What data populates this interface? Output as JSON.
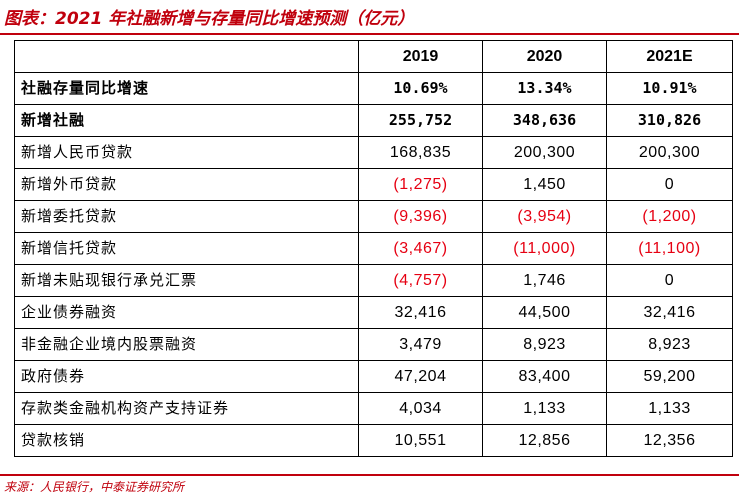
{
  "title": "图表：2021 年社融新增与存量同比增速预测（亿元）",
  "columns": [
    "",
    "2019",
    "2020",
    "2021E"
  ],
  "rows": [
    {
      "label": "社融存量同比增速",
      "values": [
        "10.69%",
        "13.34%",
        "10.91%"
      ],
      "negative": [
        false,
        false,
        false
      ],
      "bold": true
    },
    {
      "label": "新增社融",
      "values": [
        "255,752",
        "348,636",
        "310,826"
      ],
      "negative": [
        false,
        false,
        false
      ],
      "bold": true
    },
    {
      "label": "新增人民币贷款",
      "values": [
        "168,835",
        "200,300",
        "200,300"
      ],
      "negative": [
        false,
        false,
        false
      ],
      "bold": false
    },
    {
      "label": "新增外币贷款",
      "values": [
        "(1,275)",
        "1,450",
        "0"
      ],
      "negative": [
        true,
        false,
        false
      ],
      "bold": false
    },
    {
      "label": "新增委托贷款",
      "values": [
        "(9,396)",
        "(3,954)",
        "(1,200)"
      ],
      "negative": [
        true,
        true,
        true
      ],
      "bold": false
    },
    {
      "label": "新增信托贷款",
      "values": [
        "(3,467)",
        "(11,000)",
        "(11,100)"
      ],
      "negative": [
        true,
        true,
        true
      ],
      "bold": false
    },
    {
      "label": "新增未贴现银行承兑汇票",
      "values": [
        "(4,757)",
        "1,746",
        "0"
      ],
      "negative": [
        true,
        false,
        false
      ],
      "bold": false
    },
    {
      "label": "企业债券融资",
      "values": [
        "32,416",
        "44,500",
        "32,416"
      ],
      "negative": [
        false,
        false,
        false
      ],
      "bold": false
    },
    {
      "label": "非金融企业境内股票融资",
      "values": [
        "3,479",
        "8,923",
        "8,923"
      ],
      "negative": [
        false,
        false,
        false
      ],
      "bold": false
    },
    {
      "label": "政府债券",
      "values": [
        "47,204",
        "83,400",
        "59,200"
      ],
      "negative": [
        false,
        false,
        false
      ],
      "bold": false
    },
    {
      "label": "存款类金融机构资产支持证券",
      "values": [
        "4,034",
        "1,133",
        "1,133"
      ],
      "negative": [
        false,
        false,
        false
      ],
      "bold": false
    },
    {
      "label": "贷款核销",
      "values": [
        "10,551",
        "12,856",
        "12,356"
      ],
      "negative": [
        false,
        false,
        false
      ],
      "bold": false
    }
  ],
  "source": "来源：人民银行，中泰证券研究所",
  "colors": {
    "accent": "#c0000d",
    "negative": "#e60012",
    "text": "#000000"
  }
}
